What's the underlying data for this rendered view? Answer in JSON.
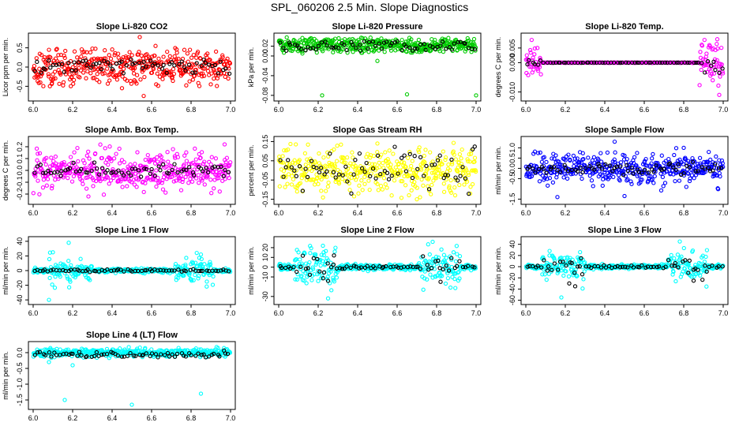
{
  "figure": {
    "title": "SPL_060206  2.5 Min. Slope Diagnostics"
  },
  "chart_data": [
    {
      "type": "scatter",
      "title": "Slope Li-820 CO2",
      "xlabel": "",
      "ylabel": "Licor ppm per min.",
      "xlim": [
        6.0,
        7.0
      ],
      "ylim": [
        -0.8,
        0.8
      ],
      "xticks": [
        "6.0",
        "6.2",
        "6.4",
        "6.6",
        "6.8",
        "7.0"
      ],
      "yticks": [
        "-0.5",
        "0.0",
        "0.5"
      ],
      "grid": false,
      "series": [
        {
          "color": "#ff0000",
          "spread": 0.25,
          "extreme": 0.5,
          "outliers": [
            [
              6.3,
              0.48
            ],
            [
              6.45,
              -0.55
            ],
            [
              6.54,
              0.78
            ],
            [
              6.56,
              -0.75
            ],
            [
              6.62,
              0.55
            ],
            [
              6.08,
              0.45
            ]
          ]
        },
        {
          "color": "#000000",
          "spread": 0.12,
          "extreme": 0.2,
          "outliers": []
        }
      ]
    },
    {
      "type": "scatter",
      "title": "Slope Li-820 Pressure",
      "xlabel": "",
      "ylabel": "kPa per min.",
      "xlim": [
        6.0,
        7.0
      ],
      "ylim": [
        -0.085,
        0.04
      ],
      "xticks": [
        "6.0",
        "6.2",
        "6.4",
        "6.6",
        "6.8",
        "7.0"
      ],
      "yticks": [
        "-0.08",
        "-0.04",
        "0.00",
        "0.02"
      ],
      "grid": false,
      "series": [
        {
          "color": "#00cc00",
          "spread": 0.008,
          "extreme": 0.016,
          "center": 0.022,
          "outliers": [
            [
              6.22,
              -0.08
            ],
            [
              6.65,
              -0.078
            ],
            [
              7.0,
              -0.08
            ],
            [
              6.5,
              -0.01
            ],
            [
              6.12,
              0.005
            ]
          ]
        },
        {
          "color": "#000000",
          "spread": 0.006,
          "extreme": 0.01,
          "center": 0.02,
          "outliers": []
        }
      ]
    },
    {
      "type": "scatter",
      "title": "Slope Li-820 Temp.",
      "xlabel": "",
      "ylabel": "degrees C per min.",
      "xlim": [
        6.0,
        7.0
      ],
      "ylim": [
        -0.012,
        0.009
      ],
      "xticks": [
        "6.0",
        "6.2",
        "6.4",
        "6.6",
        "6.8",
        "7.0"
      ],
      "yticks": [
        "-0.010",
        "0.000",
        "0.005"
      ],
      "grid": false,
      "series": [
        {
          "color": "#ff00ff",
          "pattern": "edges",
          "spread": 0.0015,
          "extreme": 0.008,
          "outliers": [
            [
              6.97,
              0.008
            ],
            [
              6.98,
              -0.011
            ],
            [
              6.93,
              0.006
            ]
          ]
        },
        {
          "color": "#000000",
          "pattern": "edges",
          "spread": 0.0007,
          "extreme": 0.004,
          "outliers": []
        }
      ]
    },
    {
      "type": "scatter",
      "title": "Slope Amb. Box Temp.",
      "xlabel": "",
      "ylabel": "degrees C per min.",
      "xlim": [
        6.0,
        7.0
      ],
      "ylim": [
        -0.26,
        0.26
      ],
      "xticks": [
        "6.0",
        "6.2",
        "6.4",
        "6.6",
        "6.8",
        "7.0"
      ],
      "yticks": [
        "-0.2",
        "-0.1",
        "0.0",
        "0.1",
        "0.2"
      ],
      "grid": false,
      "series": [
        {
          "color": "#ff00ff",
          "spread": 0.08,
          "extreme": 0.22,
          "outliers": [
            [
              6.97,
              0.22
            ],
            [
              6.28,
              -0.22
            ]
          ]
        },
        {
          "color": "#000000",
          "spread": 0.03,
          "extreme": 0.07,
          "outliers": []
        }
      ]
    },
    {
      "type": "scatter",
      "title": "Slope Gas Stream RH",
      "xlabel": "",
      "ylabel": "percent per min.",
      "xlim": [
        6.0,
        7.0
      ],
      "ylim": [
        -0.16,
        0.16
      ],
      "xticks": [
        "6.0",
        "6.2",
        "6.4",
        "6.6",
        "6.8",
        "7.0"
      ],
      "yticks": [
        "-0.15",
        "-0.05",
        "0.05",
        "0.15"
      ],
      "grid": false,
      "series": [
        {
          "color": "#ffff00",
          "spread": 0.06,
          "extreme": 0.15,
          "outliers": [
            [
              6.5,
              0.14
            ],
            [
              6.7,
              -0.15
            ]
          ]
        },
        {
          "color": "#000000",
          "spread": 0.05,
          "extreme": 0.13,
          "outliers": []
        }
      ]
    },
    {
      "type": "scatter",
      "title": "Slope Sample Flow",
      "xlabel": "",
      "ylabel": "ml/min per min.",
      "xlim": [
        6.0,
        7.0
      ],
      "ylim": [
        -1.6,
        1.4
      ],
      "xticks": [
        "6.0",
        "6.2",
        "6.4",
        "6.6",
        "6.8",
        "7.0"
      ],
      "yticks": [
        "-1.5",
        "-0.5",
        "0.0",
        "0.5",
        "1.0"
      ],
      "grid": false,
      "series": [
        {
          "color": "#0000ff",
          "spread": 0.35,
          "extreme": 1.3,
          "outliers": [
            [
              6.16,
              -1.4
            ],
            [
              6.5,
              -1.35
            ],
            [
              6.45,
              1.3
            ],
            [
              6.8,
              1.0
            ]
          ]
        },
        {
          "color": "#000000",
          "spread": 0.15,
          "extreme": 0.35,
          "outliers": []
        }
      ]
    },
    {
      "type": "scatter",
      "title": "Slope Line 1 Flow",
      "xlabel": "",
      "ylabel": "ml/min per min.",
      "xlim": [
        6.0,
        7.0
      ],
      "ylim": [
        -42,
        42
      ],
      "xticks": [
        "6.0",
        "6.2",
        "6.4",
        "6.6",
        "6.8",
        "7.0"
      ],
      "yticks": [
        "-40",
        "-20",
        "0",
        "20",
        "40"
      ],
      "grid": false,
      "series": [
        {
          "color": "#00ffff",
          "pattern": "bursts",
          "spread": 2.5,
          "extreme": 30,
          "outliers": [
            [
              6.08,
              -40
            ],
            [
              6.18,
              38
            ],
            [
              6.1,
              25
            ],
            [
              6.85,
              22
            ],
            [
              6.88,
              -15
            ]
          ]
        },
        {
          "color": "#000000",
          "spread": 0.8,
          "extreme": 2,
          "outliers": []
        }
      ]
    },
    {
      "type": "scatter",
      "title": "Slope Line 2 Flow",
      "xlabel": "",
      "ylabel": "ml/min per min.",
      "xlim": [
        6.0,
        7.0
      ],
      "ylim": [
        -35,
        28
      ],
      "xticks": [
        "6.0",
        "6.2",
        "6.4",
        "6.6",
        "6.8",
        "7.0"
      ],
      "yticks": [
        "-30",
        "-10",
        "0",
        "10",
        "20"
      ],
      "grid": false,
      "series": [
        {
          "color": "#00ffff",
          "pattern": "bursts",
          "spread": 3,
          "extreme": 30,
          "outliers": [
            [
              6.25,
              -32
            ],
            [
              6.78,
              26
            ],
            [
              6.13,
              15
            ]
          ]
        },
        {
          "color": "#000000",
          "pattern": "bursts",
          "spread": 2,
          "extreme": 15,
          "outliers": [
            [
              6.25,
              -14
            ],
            [
              6.28,
              12
            ],
            [
              6.82,
              -15
            ]
          ]
        }
      ]
    },
    {
      "type": "scatter",
      "title": "Slope Line 3 Flow",
      "xlabel": "",
      "ylabel": "ml/min per min.",
      "xlim": [
        6.0,
        7.0
      ],
      "ylim": [
        -62,
        48
      ],
      "xticks": [
        "6.0",
        "6.2",
        "6.4",
        "6.6",
        "6.8",
        "7.0"
      ],
      "yticks": [
        "-60",
        "-40",
        "-20",
        "0",
        "20",
        "40"
      ],
      "grid": false,
      "series": [
        {
          "color": "#00ffff",
          "pattern": "bursts",
          "spread": 4,
          "extreme": 55,
          "outliers": [
            [
              6.18,
              -55
            ],
            [
              6.78,
              45
            ],
            [
              6.12,
              20
            ]
          ]
        },
        {
          "color": "#000000",
          "pattern": "bursts",
          "spread": 3,
          "extreme": 30,
          "outliers": [
            [
              6.22,
              -30
            ],
            [
              6.25,
              -35
            ],
            [
              6.85,
              -25
            ],
            [
              6.28,
              15
            ]
          ]
        }
      ]
    },
    {
      "type": "scatter",
      "title": "Slope Line 4 (LT) Flow",
      "xlabel": "",
      "ylabel": "ml/min per min.",
      "xlim": [
        6.0,
        7.0
      ],
      "ylim": [
        -1.7,
        0.25
      ],
      "xticks": [
        "6.0",
        "6.2",
        "6.4",
        "6.6",
        "6.8",
        "7.0"
      ],
      "yticks": [
        "-1.5",
        "-1.0",
        "-0.5",
        "0.0"
      ],
      "grid": false,
      "series": [
        {
          "color": "#00ffff",
          "spread": 0.07,
          "extreme": 0.18,
          "center": 0.0,
          "outliers": [
            [
              6.16,
              -1.5
            ],
            [
              6.5,
              -1.65
            ],
            [
              6.85,
              -1.3
            ],
            [
              6.2,
              -0.4
            ],
            [
              6.08,
              -0.3
            ]
          ]
        },
        {
          "color": "#000000",
          "spread": 0.05,
          "extreme": 0.12,
          "center": -0.05,
          "outliers": []
        }
      ]
    }
  ]
}
